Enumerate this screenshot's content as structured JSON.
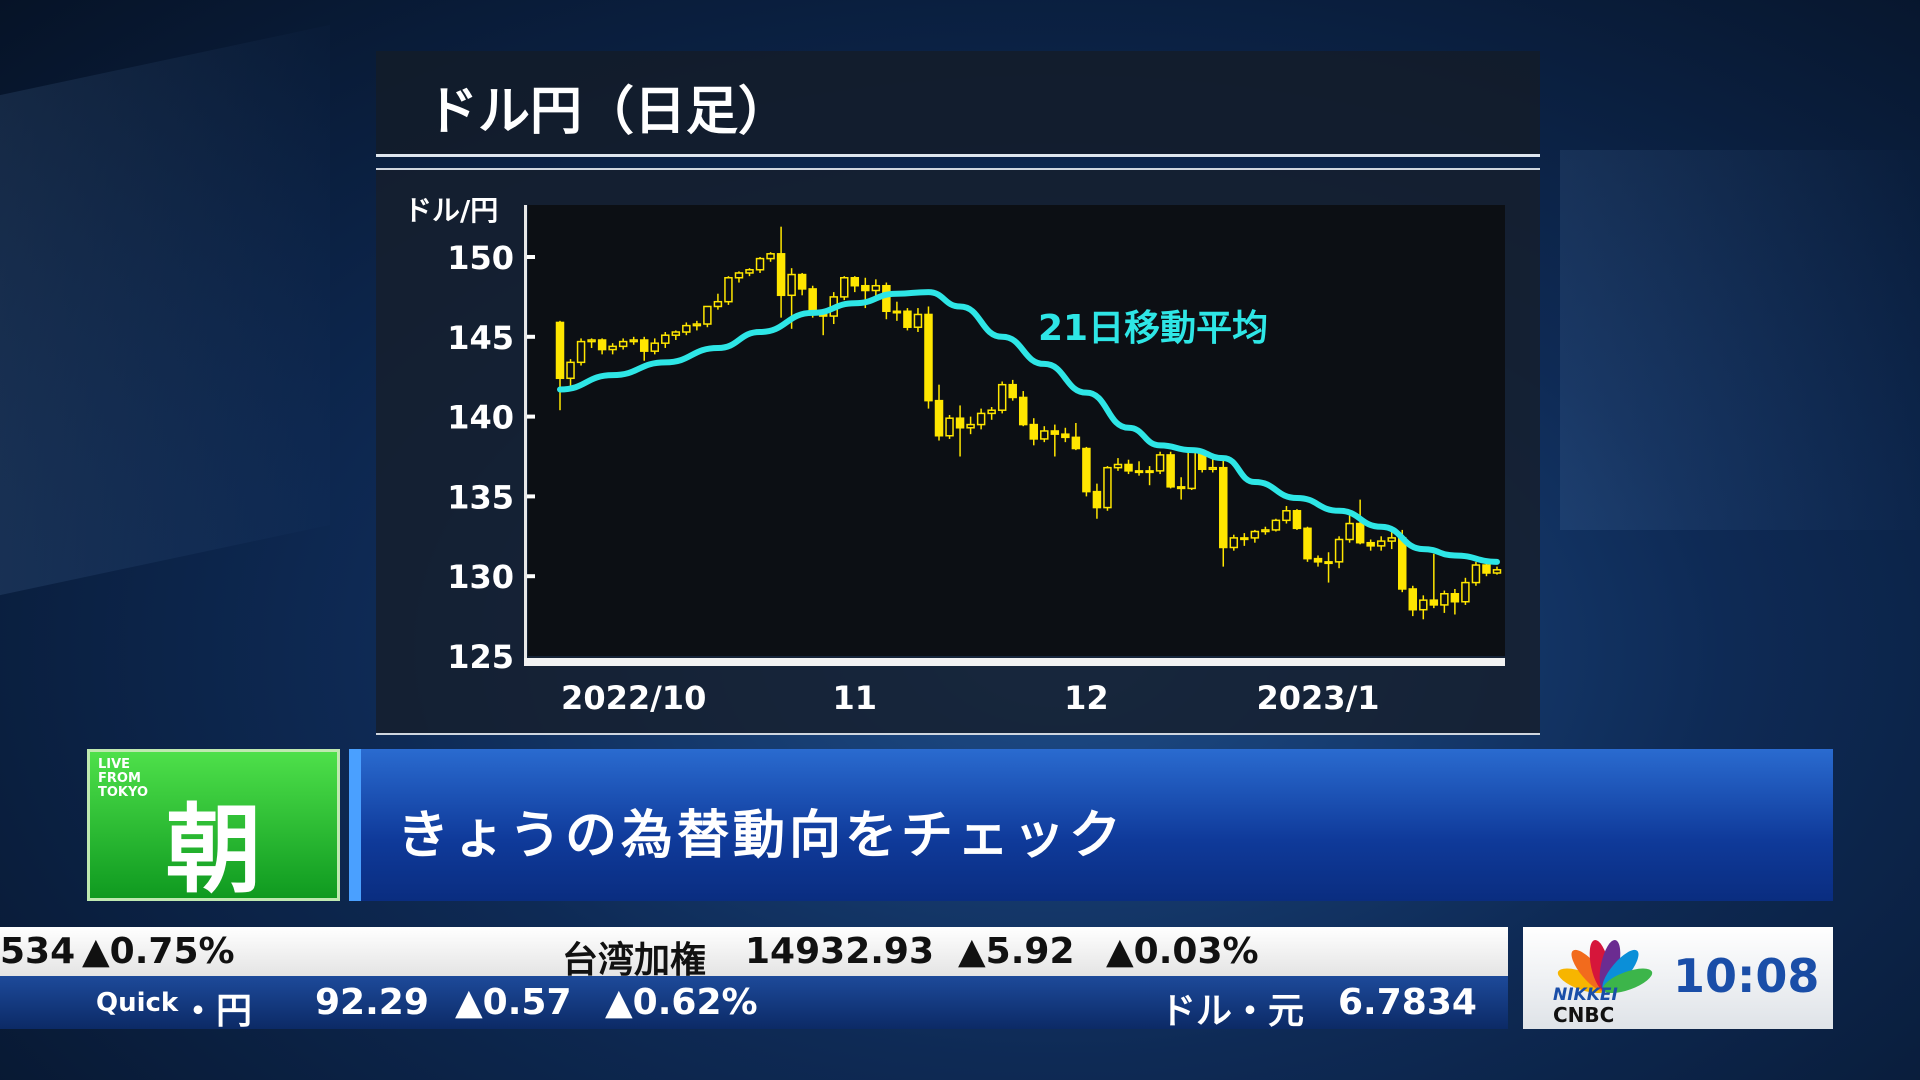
{
  "title": "ドル円（日足）",
  "chart_data": {
    "type": "candlestick",
    "ylabel": "ドル/円",
    "ylim": [
      125,
      152
    ],
    "yticks": [
      150,
      145,
      140,
      135,
      130,
      125
    ],
    "xticks": [
      {
        "label": "2022/10",
        "index": 7
      },
      {
        "label": "11",
        "index": 28
      },
      {
        "label": "12",
        "index": 50
      },
      {
        "label": "2023/1",
        "index": 72
      }
    ],
    "candle_color": "#ffe600",
    "ma_color": "#2ee6e6",
    "ma_label": "21日移動平均",
    "ohlc": [
      [
        145.9,
        146.0,
        140.4,
        142.4
      ],
      [
        142.4,
        143.6,
        141.8,
        143.4
      ],
      [
        143.4,
        144.9,
        143.2,
        144.7
      ],
      [
        144.7,
        144.9,
        144.3,
        144.8
      ],
      [
        144.8,
        144.9,
        143.9,
        144.2
      ],
      [
        144.2,
        144.6,
        143.9,
        144.4
      ],
      [
        144.4,
        144.9,
        144.2,
        144.7
      ],
      [
        144.7,
        145.0,
        144.5,
        144.8
      ],
      [
        144.8,
        145.0,
        143.5,
        144.1
      ],
      [
        144.1,
        144.9,
        143.9,
        144.6
      ],
      [
        144.6,
        145.3,
        144.3,
        145.1
      ],
      [
        145.1,
        145.4,
        144.8,
        145.3
      ],
      [
        145.3,
        145.9,
        145.1,
        145.7
      ],
      [
        145.7,
        146.0,
        145.4,
        145.8
      ],
      [
        145.8,
        146.9,
        145.6,
        146.9
      ],
      [
        146.9,
        147.7,
        146.7,
        147.2
      ],
      [
        147.2,
        148.8,
        147.0,
        148.7
      ],
      [
        148.7,
        149.1,
        148.4,
        149.0
      ],
      [
        149.0,
        149.3,
        148.8,
        149.2
      ],
      [
        149.2,
        150.0,
        149.0,
        149.9
      ],
      [
        149.9,
        150.3,
        149.7,
        150.2
      ],
      [
        150.2,
        151.9,
        146.2,
        147.6
      ],
      [
        147.6,
        149.3,
        145.5,
        148.9
      ],
      [
        148.9,
        149.0,
        147.6,
        148.0
      ],
      [
        148.0,
        148.2,
        146.2,
        146.4
      ],
      [
        146.4,
        146.7,
        145.1,
        146.3
      ],
      [
        146.3,
        147.8,
        145.8,
        147.5
      ],
      [
        147.5,
        148.8,
        147.3,
        148.7
      ],
      [
        148.7,
        148.8,
        147.8,
        148.2
      ],
      [
        148.2,
        148.7,
        146.8,
        147.9
      ],
      [
        147.9,
        148.6,
        147.4,
        148.2
      ],
      [
        148.2,
        148.4,
        146.1,
        146.6
      ],
      [
        146.6,
        147.2,
        146.0,
        146.6
      ],
      [
        146.6,
        146.8,
        145.4,
        145.6
      ],
      [
        145.6,
        146.8,
        145.3,
        146.4
      ],
      [
        146.4,
        146.9,
        140.5,
        141.0
      ],
      [
        141.0,
        142.0,
        138.5,
        138.8
      ],
      [
        138.8,
        140.1,
        138.6,
        139.9
      ],
      [
        139.9,
        140.7,
        137.5,
        139.3
      ],
      [
        139.3,
        140.0,
        138.9,
        139.5
      ],
      [
        139.5,
        140.5,
        139.2,
        140.2
      ],
      [
        140.2,
        140.6,
        139.8,
        140.4
      ],
      [
        140.4,
        142.2,
        140.2,
        142.0
      ],
      [
        142.0,
        142.3,
        141.0,
        141.2
      ],
      [
        141.2,
        141.6,
        139.4,
        139.5
      ],
      [
        139.5,
        139.9,
        138.2,
        138.6
      ],
      [
        138.6,
        139.4,
        138.4,
        139.1
      ],
      [
        139.1,
        139.5,
        137.5,
        138.9
      ],
      [
        138.9,
        139.3,
        138.4,
        138.7
      ],
      [
        138.7,
        139.6,
        137.9,
        138.0
      ],
      [
        138.0,
        138.1,
        135.0,
        135.3
      ],
      [
        135.3,
        135.8,
        133.6,
        134.3
      ],
      [
        134.3,
        136.9,
        134.1,
        136.8
      ],
      [
        136.8,
        137.4,
        136.6,
        137.0
      ],
      [
        137.0,
        137.3,
        136.4,
        136.6
      ],
      [
        136.6,
        137.2,
        136.3,
        136.6
      ],
      [
        136.6,
        136.9,
        135.7,
        136.6
      ],
      [
        136.6,
        137.8,
        136.4,
        137.6
      ],
      [
        137.6,
        137.8,
        135.5,
        135.6
      ],
      [
        135.6,
        136.2,
        134.8,
        135.5
      ],
      [
        135.5,
        137.9,
        135.4,
        137.8
      ],
      [
        137.8,
        137.9,
        136.5,
        136.7
      ],
      [
        136.7,
        137.4,
        136.5,
        136.8
      ],
      [
        136.8,
        137.5,
        130.6,
        131.8
      ],
      [
        131.8,
        132.6,
        131.6,
        132.4
      ],
      [
        132.4,
        132.7,
        131.9,
        132.4
      ],
      [
        132.4,
        132.9,
        132.1,
        132.8
      ],
      [
        132.8,
        133.1,
        132.6,
        132.9
      ],
      [
        132.9,
        133.6,
        132.8,
        133.5
      ],
      [
        133.5,
        134.4,
        133.3,
        134.1
      ],
      [
        134.1,
        134.2,
        132.9,
        133.0
      ],
      [
        133.0,
        133.1,
        130.9,
        131.1
      ],
      [
        131.1,
        131.3,
        130.6,
        130.9
      ],
      [
        130.9,
        131.5,
        129.6,
        130.9
      ],
      [
        130.9,
        132.5,
        130.5,
        132.3
      ],
      [
        132.3,
        133.8,
        132.1,
        133.3
      ],
      [
        133.3,
        134.8,
        132.0,
        132.1
      ],
      [
        132.1,
        132.3,
        131.6,
        131.9
      ],
      [
        131.9,
        132.5,
        131.6,
        132.2
      ],
      [
        132.2,
        132.8,
        131.7,
        132.4
      ],
      [
        132.4,
        132.9,
        129.0,
        129.2
      ],
      [
        129.2,
        129.4,
        127.5,
        127.9
      ],
      [
        127.9,
        128.8,
        127.3,
        128.5
      ],
      [
        128.5,
        131.4,
        128.0,
        128.2
      ],
      [
        128.2,
        129.1,
        127.7,
        128.9
      ],
      [
        128.9,
        129.2,
        127.6,
        128.4
      ],
      [
        128.4,
        129.9,
        128.2,
        129.6
      ],
      [
        129.6,
        130.9,
        129.4,
        130.7
      ],
      [
        130.7,
        131.1,
        130.0,
        130.2
      ],
      [
        130.2,
        130.6,
        130.1,
        130.4
      ]
    ],
    "ma21": [
      [
        0,
        141.7
      ],
      [
        5,
        142.6
      ],
      [
        10,
        143.4
      ],
      [
        15,
        144.3
      ],
      [
        19,
        145.3
      ],
      [
        24,
        146.5
      ],
      [
        28,
        147.1
      ],
      [
        32,
        147.7
      ],
      [
        35,
        147.8
      ],
      [
        38,
        146.9
      ],
      [
        42,
        145.0
      ],
      [
        46,
        143.3
      ],
      [
        50,
        141.5
      ],
      [
        54,
        139.3
      ],
      [
        57,
        138.2
      ],
      [
        60,
        137.9
      ],
      [
        63,
        137.4
      ],
      [
        66,
        135.9
      ],
      [
        70,
        134.9
      ],
      [
        74,
        134.1
      ],
      [
        78,
        133.1
      ],
      [
        82,
        131.7
      ],
      [
        85,
        131.3
      ],
      [
        89,
        130.9
      ]
    ]
  },
  "lower_third": {
    "live_label": "LIVE FROM TOKYO",
    "program": "朝",
    "headline": "きょうの為替動向をチェック"
  },
  "ticker": {
    "row1": [
      {
        "text": "534"
      },
      {
        "text": "▲0.75%",
        "up": true
      },
      {
        "text": "台湾加権"
      },
      {
        "text": "14932.93"
      },
      {
        "text": "▲5.92",
        "up": true
      },
      {
        "text": "▲0.03%",
        "up": true
      }
    ],
    "row2": [
      {
        "text": "Quick"
      },
      {
        "text": "・円"
      },
      {
        "text": "92.29"
      },
      {
        "text": "▲0.57",
        "up": true
      },
      {
        "text": "▲0.62%",
        "up": true
      },
      {
        "text": "ドル・元"
      },
      {
        "text": "6.7834"
      }
    ]
  },
  "logo": {
    "line1": "NIKKEI",
    "line2": "CNBC"
  },
  "clock": "10:08"
}
